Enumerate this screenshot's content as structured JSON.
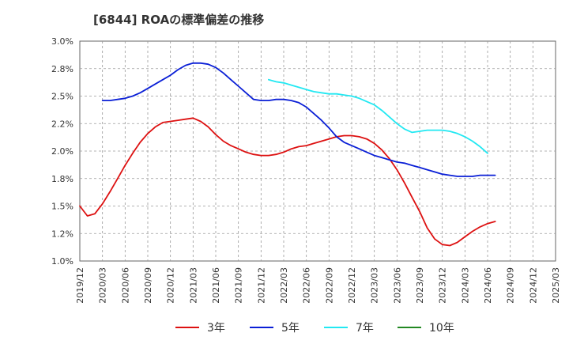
{
  "chart_data": {
    "type": "line",
    "title": "[6844]  ROAの標準偏差の推移",
    "xlabel": "",
    "ylabel": "",
    "ylim": [
      1.0,
      3.0
    ],
    "yticks": [
      "1.0%",
      "1.2%",
      "1.5%",
      "1.8%",
      "2.0%",
      "2.2%",
      "2.5%",
      "2.8%",
      "3.0%"
    ],
    "ytick_values": [
      1.0,
      1.25,
      1.5,
      1.75,
      2.0,
      2.25,
      2.5,
      2.75,
      3.0
    ],
    "xticks": [
      "2019/12",
      "2020/03",
      "2020/06",
      "2020/09",
      "2020/12",
      "2021/03",
      "2021/06",
      "2021/09",
      "2021/12",
      "2022/03",
      "2022/06",
      "2022/09",
      "2022/12",
      "2023/03",
      "2023/06",
      "2023/09",
      "2023/12",
      "2024/03",
      "2024/06",
      "2024/09",
      "2024/12",
      "2025/03"
    ],
    "grid": true,
    "legend_position": "bottom",
    "series": [
      {
        "name": "3年",
        "color": "#dd1111",
        "points": [
          [
            0,
            1.5
          ],
          [
            1,
            1.41
          ],
          [
            2,
            1.43
          ],
          [
            3,
            1.52
          ],
          [
            4,
            1.63
          ],
          [
            5,
            1.75
          ],
          [
            6,
            1.87
          ],
          [
            7,
            1.98
          ],
          [
            8,
            2.08
          ],
          [
            9,
            2.16
          ],
          [
            10,
            2.22
          ],
          [
            11,
            2.26
          ],
          [
            12,
            2.27
          ],
          [
            13,
            2.28
          ],
          [
            14,
            2.29
          ],
          [
            15,
            2.3
          ],
          [
            16,
            2.27
          ],
          [
            17,
            2.22
          ],
          [
            18,
            2.15
          ],
          [
            19,
            2.09
          ],
          [
            20,
            2.05
          ],
          [
            21,
            2.02
          ],
          [
            22,
            1.99
          ],
          [
            23,
            1.97
          ],
          [
            24,
            1.96
          ],
          [
            25,
            1.96
          ],
          [
            26,
            1.97
          ],
          [
            27,
            1.99
          ],
          [
            28,
            2.02
          ],
          [
            29,
            2.04
          ],
          [
            30,
            2.05
          ],
          [
            31,
            2.07
          ],
          [
            32,
            2.09
          ],
          [
            33,
            2.11
          ],
          [
            34,
            2.13
          ],
          [
            35,
            2.14
          ],
          [
            36,
            2.14
          ],
          [
            37,
            2.13
          ],
          [
            38,
            2.11
          ],
          [
            39,
            2.07
          ],
          [
            40,
            2.01
          ],
          [
            41,
            1.93
          ],
          [
            42,
            1.83
          ],
          [
            43,
            1.71
          ],
          [
            44,
            1.58
          ],
          [
            45,
            1.45
          ],
          [
            46,
            1.3
          ],
          [
            47,
            1.2
          ],
          [
            48,
            1.15
          ],
          [
            49,
            1.14
          ],
          [
            50,
            1.17
          ],
          [
            51,
            1.22
          ],
          [
            52,
            1.27
          ],
          [
            53,
            1.31
          ],
          [
            54,
            1.34
          ],
          [
            55,
            1.36
          ]
        ]
      },
      {
        "name": "5年",
        "color": "#0a1fd6",
        "points": [
          [
            3,
            2.46
          ],
          [
            4,
            2.46
          ],
          [
            5,
            2.47
          ],
          [
            6,
            2.48
          ],
          [
            7,
            2.5
          ],
          [
            8,
            2.53
          ],
          [
            9,
            2.57
          ],
          [
            10,
            2.61
          ],
          [
            11,
            2.65
          ],
          [
            12,
            2.69
          ],
          [
            13,
            2.74
          ],
          [
            14,
            2.78
          ],
          [
            15,
            2.8
          ],
          [
            16,
            2.8
          ],
          [
            17,
            2.79
          ],
          [
            18,
            2.76
          ],
          [
            19,
            2.71
          ],
          [
            20,
            2.65
          ],
          [
            21,
            2.59
          ],
          [
            22,
            2.53
          ],
          [
            23,
            2.47
          ],
          [
            24,
            2.46
          ],
          [
            25,
            2.46
          ],
          [
            26,
            2.47
          ],
          [
            27,
            2.47
          ],
          [
            28,
            2.46
          ],
          [
            29,
            2.44
          ],
          [
            30,
            2.4
          ],
          [
            31,
            2.34
          ],
          [
            32,
            2.28
          ],
          [
            33,
            2.21
          ],
          [
            34,
            2.13
          ],
          [
            35,
            2.08
          ],
          [
            36,
            2.05
          ],
          [
            37,
            2.02
          ],
          [
            38,
            1.99
          ],
          [
            39,
            1.96
          ],
          [
            40,
            1.94
          ],
          [
            41,
            1.92
          ],
          [
            42,
            1.9
          ],
          [
            43,
            1.89
          ],
          [
            44,
            1.87
          ],
          [
            45,
            1.85
          ],
          [
            46,
            1.83
          ],
          [
            47,
            1.81
          ],
          [
            48,
            1.79
          ],
          [
            49,
            1.78
          ],
          [
            50,
            1.77
          ],
          [
            51,
            1.77
          ],
          [
            52,
            1.77
          ],
          [
            53,
            1.78
          ],
          [
            54,
            1.78
          ],
          [
            55,
            1.78
          ]
        ]
      },
      {
        "name": "7年",
        "color": "#22e8f2",
        "points": [
          [
            25,
            2.65
          ],
          [
            26,
            2.63
          ],
          [
            27,
            2.62
          ],
          [
            28,
            2.6
          ],
          [
            29,
            2.58
          ],
          [
            30,
            2.56
          ],
          [
            31,
            2.54
          ],
          [
            32,
            2.53
          ],
          [
            33,
            2.52
          ],
          [
            34,
            2.52
          ],
          [
            35,
            2.51
          ],
          [
            36,
            2.5
          ],
          [
            37,
            2.48
          ],
          [
            38,
            2.45
          ],
          [
            39,
            2.42
          ],
          [
            40,
            2.37
          ],
          [
            41,
            2.31
          ],
          [
            42,
            2.25
          ],
          [
            43,
            2.2
          ],
          [
            44,
            2.17
          ],
          [
            45,
            2.18
          ],
          [
            46,
            2.19
          ],
          [
            47,
            2.19
          ],
          [
            48,
            2.19
          ],
          [
            49,
            2.18
          ],
          [
            50,
            2.16
          ],
          [
            51,
            2.13
          ],
          [
            52,
            2.09
          ],
          [
            53,
            2.04
          ],
          [
            54,
            1.98
          ]
        ]
      },
      {
        "name": "10年",
        "color": "#228822",
        "points": []
      }
    ]
  }
}
